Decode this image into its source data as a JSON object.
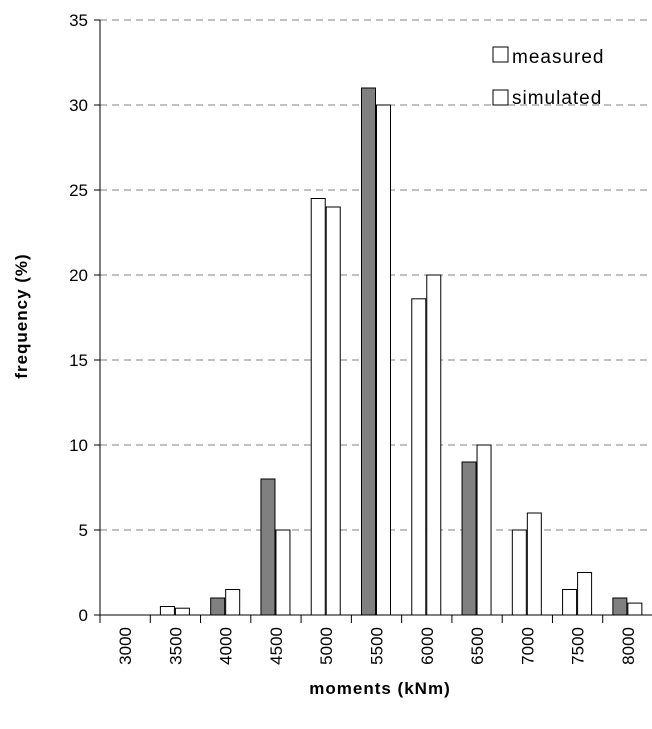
{
  "chart_data": {
    "type": "bar",
    "title": "",
    "xlabel": "moments (kNm)",
    "ylabel": "frequency (%)",
    "ylim": [
      0,
      35
    ],
    "yticks": [
      0,
      5,
      10,
      15,
      20,
      25,
      30,
      35
    ],
    "grid": "horizontal dashed",
    "legend_position": "top-right",
    "categories": [
      "3000",
      "3500",
      "4000",
      "4500",
      "5000",
      "5500",
      "6000",
      "6500",
      "7000",
      "7500",
      "8000"
    ],
    "series": [
      {
        "name": "measured",
        "values": [
          0,
          0.5,
          1,
          8,
          24.5,
          31,
          18.6,
          9,
          5,
          1.5,
          1
        ]
      },
      {
        "name": "simulated",
        "values": [
          0,
          0.4,
          1.5,
          5,
          24,
          30,
          20,
          10,
          6,
          2.5,
          0.7
        ]
      }
    ],
    "bar_colors": {
      "filled": "#808080",
      "hollow": "#ffffff",
      "outline": "#000000",
      "filled_measured_categories": [
        "4000",
        "4500",
        "5500",
        "6500",
        "8000"
      ]
    }
  }
}
